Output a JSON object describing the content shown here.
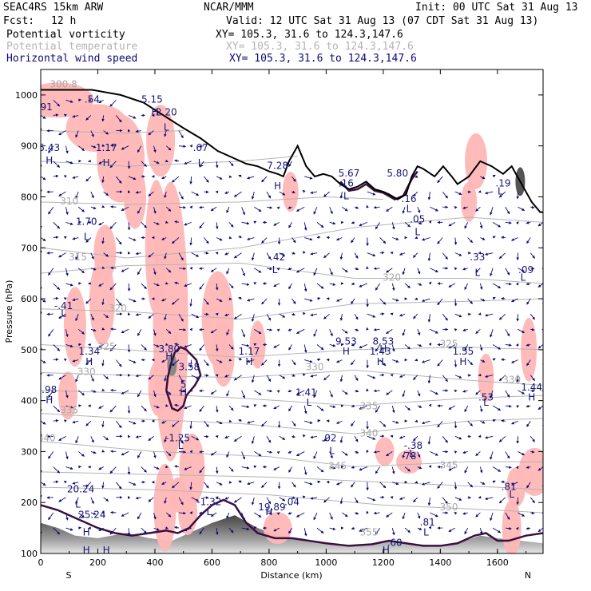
{
  "header": {
    "model": "SEAC4RS 15km ARW",
    "center": "NCAR/MMM",
    "init": "Init: 00 UTC Sat 31 Aug 13",
    "fcst_label": "Fcst:",
    "fcst_value": "12 h",
    "valid": "Valid: 12 UTC Sat 31 Aug 13 (07 CDT Sat 31 Aug 13)",
    "fields": [
      {
        "name": "Potential vorticity",
        "xy": "XY= 105.3, 31.6 to 124.3,147.6"
      },
      {
        "name": "Potential temperature",
        "xy": "XY= 105.3, 31.6 to 124.3,147.6"
      },
      {
        "name": "Horizontal wind speed",
        "xy": "XY= 105.3, 31.6 to 124.3,147.6"
      }
    ]
  },
  "chart_data": {
    "type": "cross-section",
    "xlabel": "Distance (km)",
    "ylabel": "Pressure (hPa)",
    "xlim": [
      0,
      1760
    ],
    "ylim": [
      1050,
      100
    ],
    "x_ticks": [
      "0",
      "200",
      "400",
      "600",
      "800",
      "1000",
      "1200",
      "1400",
      "1600"
    ],
    "y_ticks": [
      "100",
      "200",
      "300",
      "400",
      "500",
      "600",
      "700",
      "800",
      "900",
      "1000"
    ],
    "x_end_labels": {
      "left": "S",
      "right": "N"
    },
    "colors": {
      "pv_shade": "#ffb6b6",
      "wind_arrows": "#0a0a78",
      "theta": "#b4b4b4",
      "pv_contour": "#3a1040",
      "terrain": "#000000"
    },
    "theta_labels": [
      {
        "x": 1150,
        "p": 135,
        "text": "355"
      },
      {
        "x": 1430,
        "p": 185,
        "text": "350"
      },
      {
        "x": 1040,
        "p": 265,
        "text": "345"
      },
      {
        "x": 1430,
        "p": 267,
        "text": "345"
      },
      {
        "x": 20,
        "p": 320,
        "text": "340"
      },
      {
        "x": 1150,
        "p": 330,
        "text": "340"
      },
      {
        "x": 100,
        "p": 375,
        "text": "335"
      },
      {
        "x": 1150,
        "p": 383,
        "text": "335"
      },
      {
        "x": 160,
        "p": 450,
        "text": "330"
      },
      {
        "x": 960,
        "p": 460,
        "text": "330"
      },
      {
        "x": 1650,
        "p": 435,
        "text": "330"
      },
      {
        "x": 230,
        "p": 500,
        "text": "325"
      },
      {
        "x": 1430,
        "p": 505,
        "text": "325"
      },
      {
        "x": 270,
        "p": 575,
        "text": "320"
      },
      {
        "x": 1230,
        "p": 635,
        "text": "320"
      },
      {
        "x": 130,
        "p": 675,
        "text": "315"
      },
      {
        "x": 100,
        "p": 785,
        "text": "310"
      },
      {
        "x": 80,
        "p": 1015,
        "text": "300.8"
      }
    ],
    "annotations": [
      {
        "x": 160,
        "p": 135,
        "text": "H"
      },
      {
        "x": 180,
        "p": 170,
        "text": "25.24"
      },
      {
        "x": 130,
        "p": 190,
        "text": "L"
      },
      {
        "x": 140,
        "p": 220,
        "text": "20.24"
      },
      {
        "x": 590,
        "p": 175,
        "text": "L"
      },
      {
        "x": 590,
        "p": 195,
        "text": "-1.32"
      },
      {
        "x": 800,
        "p": 175,
        "text": "H"
      },
      {
        "x": 810,
        "p": 185,
        "text": "19.89"
      },
      {
        "x": 880,
        "p": 195,
        "text": ".04"
      },
      {
        "x": 1350,
        "p": 135,
        "text": "L"
      },
      {
        "x": 1355,
        "p": 155,
        "text": ".81"
      },
      {
        "x": 1650,
        "p": 210,
        "text": "L"
      },
      {
        "x": 1640,
        "p": 225,
        "text": ".81"
      },
      {
        "x": 490,
        "p": 305,
        "text": "L"
      },
      {
        "x": 480,
        "p": 320,
        "text": "-1.25"
      },
      {
        "x": 1020,
        "p": 295,
        "text": "L"
      },
      {
        "x": 1010,
        "p": 320,
        "text": ".02"
      },
      {
        "x": 1300,
        "p": 290,
        "text": "L"
      },
      {
        "x": 1305,
        "p": 305,
        "text": "-.38"
      },
      {
        "x": 1295,
        "p": 285,
        "text": "78"
      },
      {
        "x": 30,
        "p": 395,
        "text": "H"
      },
      {
        "x": 30,
        "p": 415,
        "text": ".98"
      },
      {
        "x": 940,
        "p": 390,
        "text": "L"
      },
      {
        "x": 930,
        "p": 410,
        "text": "1.41"
      },
      {
        "x": 1560,
        "p": 390,
        "text": "L"
      },
      {
        "x": 1560,
        "p": 400,
        "text": ".53"
      },
      {
        "x": 1720,
        "p": 400,
        "text": "H"
      },
      {
        "x": 1720,
        "p": 420,
        "text": "1.44"
      },
      {
        "x": 500,
        "p": 410,
        "text": "H"
      },
      {
        "x": 500,
        "p": 425,
        "text": "5"
      },
      {
        "x": 520,
        "p": 460,
        "text": "3.58"
      },
      {
        "x": 170,
        "p": 470,
        "text": "H"
      },
      {
        "x": 170,
        "p": 490,
        "text": "1.34"
      },
      {
        "x": 450,
        "p": 480,
        "text": "H"
      },
      {
        "x": 450,
        "p": 495,
        "text": "3.80"
      },
      {
        "x": 730,
        "p": 470,
        "text": "H"
      },
      {
        "x": 730,
        "p": 490,
        "text": "1.17"
      },
      {
        "x": 1070,
        "p": 490,
        "text": "H"
      },
      {
        "x": 1070,
        "p": 510,
        "text": "9.53"
      },
      {
        "x": 1190,
        "p": 470,
        "text": "H"
      },
      {
        "x": 1190,
        "p": 490,
        "text": "1.43"
      },
      {
        "x": 1200,
        "p": 495,
        "text": "H"
      },
      {
        "x": 1200,
        "p": 510,
        "text": "8.53"
      },
      {
        "x": 1480,
        "p": 470,
        "text": "H"
      },
      {
        "x": 1480,
        "p": 490,
        "text": "1.55"
      },
      {
        "x": 80,
        "p": 565,
        "text": "L"
      },
      {
        "x": 80,
        "p": 580,
        "text": "-.41"
      },
      {
        "x": 1690,
        "p": 635,
        "text": "L"
      },
      {
        "x": 1700,
        "p": 650,
        "text": ".09"
      },
      {
        "x": 820,
        "p": 650,
        "text": "L"
      },
      {
        "x": 830,
        "p": 675,
        "text": ".42"
      },
      {
        "x": 1530,
        "p": 645,
        "text": "L"
      },
      {
        "x": 1530,
        "p": 675,
        "text": ".33"
      },
      {
        "x": 160,
        "p": 715,
        "text": "L"
      },
      {
        "x": 160,
        "p": 745,
        "text": "1.70"
      },
      {
        "x": 1320,
        "p": 725,
        "text": "L"
      },
      {
        "x": 1320,
        "p": 750,
        "text": ".05"
      },
      {
        "x": 1290,
        "p": 770,
        "text": "L"
      },
      {
        "x": 1290,
        "p": 790,
        "text": ".16"
      },
      {
        "x": 1070,
        "p": 795,
        "text": "L"
      },
      {
        "x": 1070,
        "p": 820,
        "text": ".16"
      },
      {
        "x": 1080,
        "p": 840,
        "text": "5.67"
      },
      {
        "x": 1250,
        "p": 840,
        "text": "5.80"
      },
      {
        "x": 1610,
        "p": 805,
        "text": "L"
      },
      {
        "x": 1620,
        "p": 820,
        "text": ".19"
      },
      {
        "x": 30,
        "p": 865,
        "text": "H"
      },
      {
        "x": 30,
        "p": 890,
        "text": "5.43"
      },
      {
        "x": 230,
        "p": 860,
        "text": "H"
      },
      {
        "x": 230,
        "p": 890,
        "text": "1.17"
      },
      {
        "x": 830,
        "p": 815,
        "text": "H"
      },
      {
        "x": 830,
        "p": 855,
        "text": "7.28"
      },
      {
        "x": 560,
        "p": 860,
        "text": "L"
      },
      {
        "x": 560,
        "p": 890,
        "text": ".67"
      },
      {
        "x": 440,
        "p": 930,
        "text": "L"
      },
      {
        "x": 440,
        "p": 960,
        "text": "2.20"
      },
      {
        "x": 400,
        "p": 960,
        "text": "H"
      },
      {
        "x": 390,
        "p": 985,
        "text": "5.15"
      },
      {
        "x": 20,
        "p": 970,
        "text": "91"
      },
      {
        "x": 180,
        "p": 985,
        "text": ".54"
      },
      {
        "x": 230,
        "p": 100,
        "text": "H"
      },
      {
        "x": 160,
        "p": 100,
        "text": "H"
      },
      {
        "x": 1210,
        "p": 100,
        "text": "H"
      },
      {
        "x": 1240,
        "p": 115,
        "text": ".60"
      }
    ],
    "terrain": [
      [
        0,
        1010
      ],
      [
        180,
        1010
      ],
      [
        280,
        1000
      ],
      [
        360,
        985
      ],
      [
        430,
        960
      ],
      [
        500,
        935
      ],
      [
        560,
        915
      ],
      [
        620,
        890
      ],
      [
        680,
        875
      ],
      [
        720,
        865
      ],
      [
        760,
        860
      ],
      [
        800,
        850
      ],
      [
        830,
        845
      ],
      [
        850,
        840
      ],
      [
        870,
        870
      ],
      [
        900,
        900
      ],
      [
        930,
        860
      ],
      [
        960,
        840
      ],
      [
        990,
        845
      ],
      [
        1020,
        840
      ],
      [
        1050,
        825
      ],
      [
        1080,
        815
      ],
      [
        1110,
        820
      ],
      [
        1140,
        830
      ],
      [
        1170,
        815
      ],
      [
        1200,
        810
      ],
      [
        1220,
        805
      ],
      [
        1250,
        795
      ],
      [
        1280,
        805
      ],
      [
        1300,
        840
      ],
      [
        1320,
        860
      ],
      [
        1340,
        855
      ],
      [
        1380,
        840
      ],
      [
        1410,
        860
      ],
      [
        1440,
        840
      ],
      [
        1460,
        825
      ],
      [
        1500,
        840
      ],
      [
        1540,
        870
      ],
      [
        1580,
        860
      ],
      [
        1620,
        845
      ],
      [
        1650,
        860
      ],
      [
        1690,
        820
      ],
      [
        1720,
        790
      ],
      [
        1750,
        770
      ],
      [
        1760,
        770
      ]
    ]
  }
}
